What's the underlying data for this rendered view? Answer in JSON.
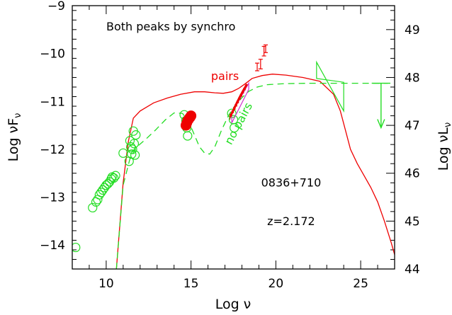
{
  "chart_data": {
    "type": "line",
    "title": "Both peaks by synchro",
    "xlabel": "Log ν",
    "ylabel": "Log νF",
    "ylabel_sub": "ν",
    "y2label": "Log νL",
    "y2label_sub": "ν",
    "xlim": [
      8,
      27
    ],
    "ylim": [
      -14.5,
      -9
    ],
    "y2lim": [
      44,
      49.5
    ],
    "grid": false,
    "x_ticks": [
      10,
      15,
      20,
      25
    ],
    "y_ticks": [
      -14,
      -13,
      -12,
      -11,
      -10,
      -9
    ],
    "y2_ticks": [
      44,
      45,
      46,
      47,
      48,
      49
    ],
    "annotations": [
      {
        "text": "0836+710",
        "x": 20.9,
        "y": -12.78
      },
      {
        "text": "z=2.172",
        "x": 20.9,
        "y": -13.58
      }
    ],
    "series": [
      {
        "name": "pairs",
        "color": "#ee0000",
        "style": "solid",
        "label_pos": {
          "x": 17.0,
          "y": -10.55
        },
        "x": [
          10.6,
          11.0,
          11.3,
          11.6,
          12.0,
          12.8,
          13.6,
          14.4,
          15.2,
          15.8,
          16.4,
          16.9,
          17.4,
          17.8,
          18.2,
          18.6,
          19.2,
          19.8,
          20.6,
          21.6,
          22.6,
          23.4,
          23.8,
          24.1,
          24.4,
          24.8,
          25.2,
          25.6,
          26.0,
          26.4,
          26.8,
          27.0
        ],
        "y": [
          -14.5,
          -12.7,
          -11.85,
          -11.35,
          -11.2,
          -11.03,
          -10.93,
          -10.85,
          -10.8,
          -10.8,
          -10.82,
          -10.83,
          -10.8,
          -10.73,
          -10.63,
          -10.52,
          -10.46,
          -10.43,
          -10.45,
          -10.5,
          -10.58,
          -10.85,
          -11.2,
          -11.6,
          -12.0,
          -12.3,
          -12.55,
          -12.8,
          -13.1,
          -13.5,
          -13.95,
          -14.2
        ]
      },
      {
        "name": "no pairs",
        "color": "#22dd22",
        "style": "dashed",
        "label_pos": {
          "x": 18.0,
          "y": -11.5
        },
        "x": [
          10.6,
          11.0,
          11.4,
          11.8,
          12.3,
          12.9,
          13.5,
          14.0,
          14.5,
          14.9,
          15.2,
          15.5,
          15.8,
          16.1,
          16.4,
          16.8,
          17.2,
          17.6,
          18.0,
          18.4,
          18.9,
          19.5,
          20.5,
          22.0,
          24.0,
          25.5,
          26.6
        ],
        "y": [
          -14.5,
          -12.75,
          -12.2,
          -11.95,
          -11.8,
          -11.6,
          -11.38,
          -11.24,
          -11.25,
          -11.45,
          -11.7,
          -11.95,
          -12.08,
          -12.1,
          -11.95,
          -11.6,
          -11.3,
          -11.08,
          -10.92,
          -10.79,
          -10.7,
          -10.65,
          -10.63,
          -10.62,
          -10.62,
          -10.62,
          -10.62
        ]
      }
    ],
    "radio_points": {
      "color": "#22dd22",
      "x": [
        8.2,
        9.2,
        9.4,
        9.5,
        9.6,
        9.7,
        9.8,
        9.9,
        10.0,
        10.1,
        10.2,
        10.3,
        10.35,
        10.45,
        10.55,
        11.0,
        11.35,
        11.4,
        11.45,
        11.5,
        11.55,
        11.6,
        11.65,
        11.7,
        11.75
      ],
      "y": [
        -14.05,
        -13.22,
        -13.1,
        -13.05,
        -12.95,
        -12.9,
        -12.85,
        -12.8,
        -12.75,
        -12.72,
        -12.68,
        -12.62,
        -12.58,
        -12.6,
        -12.55,
        -12.08,
        -12.25,
        -11.82,
        -11.95,
        -12.1,
        -12.0,
        -11.62,
        -11.88,
        -12.12,
        -11.7
      ]
    },
    "optical_open_points": {
      "color": "#22dd22",
      "x": [
        14.6,
        14.7,
        14.75,
        14.8,
        17.4,
        17.5,
        17.55
      ],
      "y": [
        -11.28,
        -11.4,
        -11.55,
        -11.72,
        -11.25,
        -11.38,
        -11.55
      ]
    },
    "optical_filled_points": {
      "color": "#ee0000",
      "x": [
        14.7,
        14.75,
        14.8,
        14.85,
        14.9,
        14.95,
        15.0
      ],
      "y": [
        -11.5,
        -11.45,
        -11.4,
        -11.38,
        -11.35,
        -11.33,
        -11.3
      ]
    },
    "xray_spectrum": {
      "color": "#ee0000",
      "x": [
        17.3,
        17.5,
        17.7,
        17.9,
        18.1,
        18.3
      ],
      "y": [
        -11.32,
        -11.18,
        -11.03,
        -10.89,
        -10.76,
        -10.64
      ]
    },
    "xray_bowtie": {
      "color": "#cc33cc",
      "x": [
        17.4,
        18.4
      ],
      "y_low": [
        -11.45,
        -10.75
      ],
      "y_high": [
        -11.25,
        -10.62
      ]
    },
    "hard_xray_points": {
      "color": "#ee0000",
      "x": [
        18.9,
        19.1,
        19.3,
        19.4
      ],
      "y": [
        -10.28,
        -10.22,
        -9.95,
        -9.9
      ],
      "err": [
        0.08,
        0.1,
        0.1,
        0.08
      ]
    },
    "gamma_bowtie": {
      "color": "#22dd22",
      "x": [
        22.4,
        24.0
      ],
      "y_low": [
        -10.52,
        -11.2
      ],
      "y_high": [
        -10.18,
        -10.6
      ]
    },
    "upper_limit": {
      "color": "#22dd22",
      "x": 26.2,
      "y": -10.62,
      "y_arrow_end": -11.55,
      "bar_half_width": 0.55
    }
  }
}
